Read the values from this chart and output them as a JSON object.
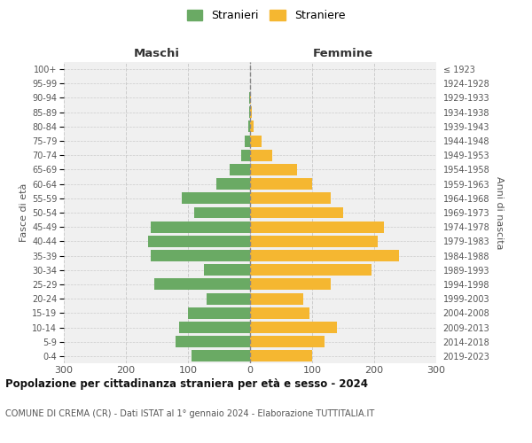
{
  "age_groups": [
    "0-4",
    "5-9",
    "10-14",
    "15-19",
    "20-24",
    "25-29",
    "30-34",
    "35-39",
    "40-44",
    "45-49",
    "50-54",
    "55-59",
    "60-64",
    "65-69",
    "70-74",
    "75-79",
    "80-84",
    "85-89",
    "90-94",
    "95-99",
    "100+"
  ],
  "birth_years": [
    "2019-2023",
    "2014-2018",
    "2009-2013",
    "2004-2008",
    "1999-2003",
    "1994-1998",
    "1989-1993",
    "1984-1988",
    "1979-1983",
    "1974-1978",
    "1969-1973",
    "1964-1968",
    "1959-1963",
    "1954-1958",
    "1949-1953",
    "1944-1948",
    "1939-1943",
    "1934-1938",
    "1929-1933",
    "1924-1928",
    "≤ 1923"
  ],
  "males": [
    95,
    120,
    115,
    100,
    70,
    155,
    75,
    160,
    165,
    160,
    90,
    110,
    55,
    33,
    14,
    8,
    3,
    2,
    1,
    0,
    0
  ],
  "females": [
    100,
    120,
    140,
    95,
    85,
    130,
    195,
    240,
    205,
    215,
    150,
    130,
    100,
    75,
    35,
    18,
    5,
    3,
    2,
    0,
    0
  ],
  "male_color": "#6aaa64",
  "female_color": "#f5b731",
  "background_color": "#f0f0f0",
  "grid_color": "#cccccc",
  "title": "Popolazione per cittadinanza straniera per età e sesso - 2024",
  "subtitle": "COMUNE DI CREMA (CR) - Dati ISTAT al 1° gennaio 2024 - Elaborazione TUTTITALIA.IT",
  "label_maschi": "Maschi",
  "label_femmine": "Femmine",
  "label_fasce": "Fasce di età",
  "label_anni": "Anni di nascita",
  "legend_m": "Stranieri",
  "legend_f": "Straniere",
  "xlim": 300
}
